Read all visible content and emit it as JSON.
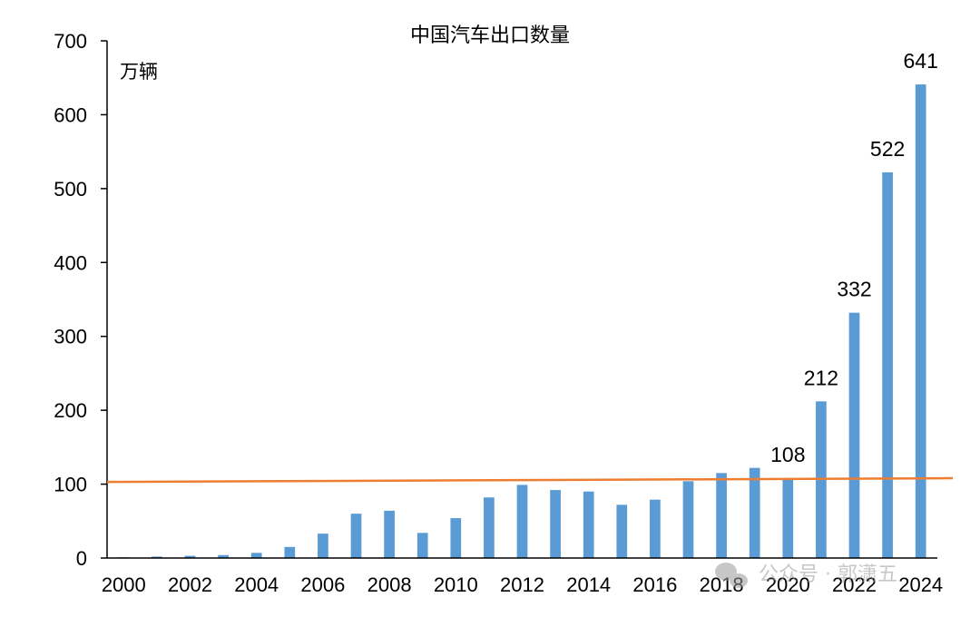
{
  "chart_data": {
    "type": "bar",
    "title": "中国汽车出口数量",
    "ylabel": "万辆",
    "xlabel": "",
    "ylim": [
      0,
      700
    ],
    "yticks": [
      0,
      100,
      200,
      300,
      400,
      500,
      600,
      700
    ],
    "categories": [
      "2000",
      "2001",
      "2002",
      "2003",
      "2004",
      "2005",
      "2006",
      "2007",
      "2008",
      "2009",
      "2010",
      "2011",
      "2012",
      "2013",
      "2014",
      "2015",
      "2016",
      "2017",
      "2018",
      "2019",
      "2020",
      "2021",
      "2022",
      "2023",
      "2024"
    ],
    "xtick_labels": [
      "2000",
      "2002",
      "2004",
      "2006",
      "2008",
      "2010",
      "2012",
      "2014",
      "2016",
      "2018",
      "2020",
      "2022",
      "2024"
    ],
    "values": [
      1,
      2,
      3,
      4,
      7,
      15,
      33,
      60,
      64,
      34,
      54,
      82,
      99,
      92,
      90,
      72,
      79,
      104,
      115,
      122,
      108,
      212,
      332,
      522,
      641
    ],
    "data_labels": [
      {
        "category": "2020",
        "text": "108"
      },
      {
        "category": "2021",
        "text": "212"
      },
      {
        "category": "2022",
        "text": "332"
      },
      {
        "category": "2023",
        "text": "522"
      },
      {
        "category": "2024",
        "text": "641"
      }
    ],
    "reference_line": {
      "start": 103,
      "end": 108
    },
    "grid": false,
    "colors": {
      "bar": "#5B9BD5",
      "line": "#ED7D31"
    }
  },
  "watermark": {
    "text": "公众号 · 郭潇五"
  }
}
